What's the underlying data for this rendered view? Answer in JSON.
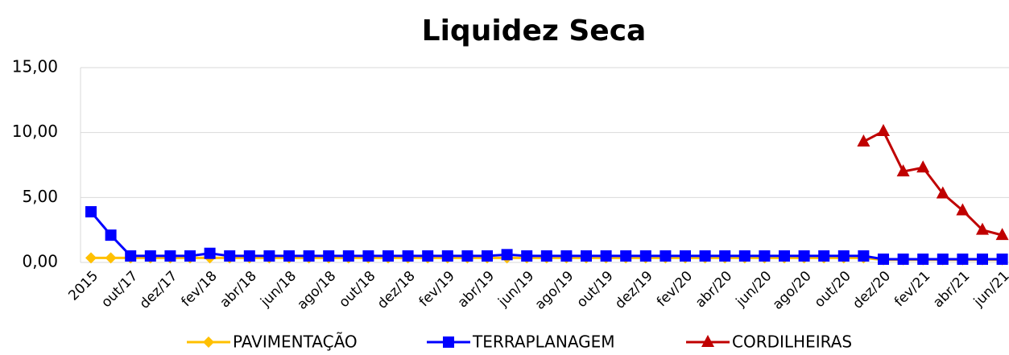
{
  "chart_data": {
    "type": "line",
    "title": "Liquidez Seca",
    "categories": [
      "2015",
      null,
      "out/17",
      null,
      "dez/17",
      null,
      "fev/18",
      null,
      "abr/18",
      null,
      "jun/18",
      null,
      "ago/18",
      null,
      "out/18",
      null,
      "dez/18",
      null,
      "fev/19",
      null,
      "abr/19",
      null,
      "jun/19",
      null,
      "ago/19",
      null,
      "out/19",
      null,
      "dez/19",
      null,
      "fev/20",
      null,
      "abr/20",
      null,
      "jun/20",
      null,
      "ago/20",
      null,
      "out/20",
      null,
      "dez/20",
      null,
      "fev/21",
      null,
      "abr/21",
      null,
      "jun/21"
    ],
    "series": [
      {
        "name": "PAVIMENTAÇÃO",
        "color": "#FFC000",
        "marker": "diamond",
        "values": [
          0.35,
          0.35,
          0.35,
          0.35,
          0.35,
          0.35,
          0.35,
          0.35,
          0.35,
          0.35,
          0.35,
          0.35,
          0.35,
          0.35,
          0.35,
          0.35,
          0.35,
          0.35,
          0.35,
          0.35,
          0.35,
          0.35,
          0.35,
          0.35,
          0.35,
          0.35,
          0.35,
          0.35,
          0.35,
          0.35,
          0.35,
          0.35,
          0.35,
          0.35,
          0.35,
          0.35,
          0.35,
          0.35,
          0.35,
          0.35,
          0.2,
          0.2,
          0.2,
          0.2,
          0.2,
          0.2,
          0.2
        ]
      },
      {
        "name": "TERRAPLANAGEM",
        "color": "#0000FF",
        "marker": "square",
        "values": [
          3.9,
          2.1,
          0.5,
          0.5,
          0.5,
          0.5,
          0.7,
          0.5,
          0.5,
          0.5,
          0.5,
          0.5,
          0.5,
          0.5,
          0.5,
          0.5,
          0.5,
          0.5,
          0.5,
          0.5,
          0.5,
          0.6,
          0.5,
          0.5,
          0.5,
          0.5,
          0.5,
          0.5,
          0.5,
          0.5,
          0.5,
          0.5,
          0.5,
          0.5,
          0.5,
          0.5,
          0.5,
          0.5,
          0.5,
          0.5,
          0.25,
          0.25,
          0.25,
          0.25,
          0.25,
          0.25,
          0.25
        ]
      },
      {
        "name": "CORDILHEIRAS",
        "color": "#C00000",
        "marker": "triangle",
        "values": [
          null,
          null,
          null,
          null,
          null,
          null,
          null,
          null,
          null,
          null,
          null,
          null,
          null,
          null,
          null,
          null,
          null,
          null,
          null,
          null,
          null,
          null,
          null,
          null,
          null,
          null,
          null,
          null,
          null,
          null,
          null,
          null,
          null,
          null,
          null,
          null,
          null,
          null,
          null,
          9.3,
          10.1,
          7.0,
          7.3,
          5.3,
          4.0,
          2.5,
          2.1
        ]
      }
    ],
    "ylim": [
      0,
      15
    ],
    "yticks": [
      {
        "value": 0,
        "label": "0,00"
      },
      {
        "value": 5,
        "label": "5,00"
      },
      {
        "value": 10,
        "label": "10,00"
      },
      {
        "value": 15,
        "label": "15,00"
      }
    ],
    "grid": true,
    "legend": "bottom"
  }
}
